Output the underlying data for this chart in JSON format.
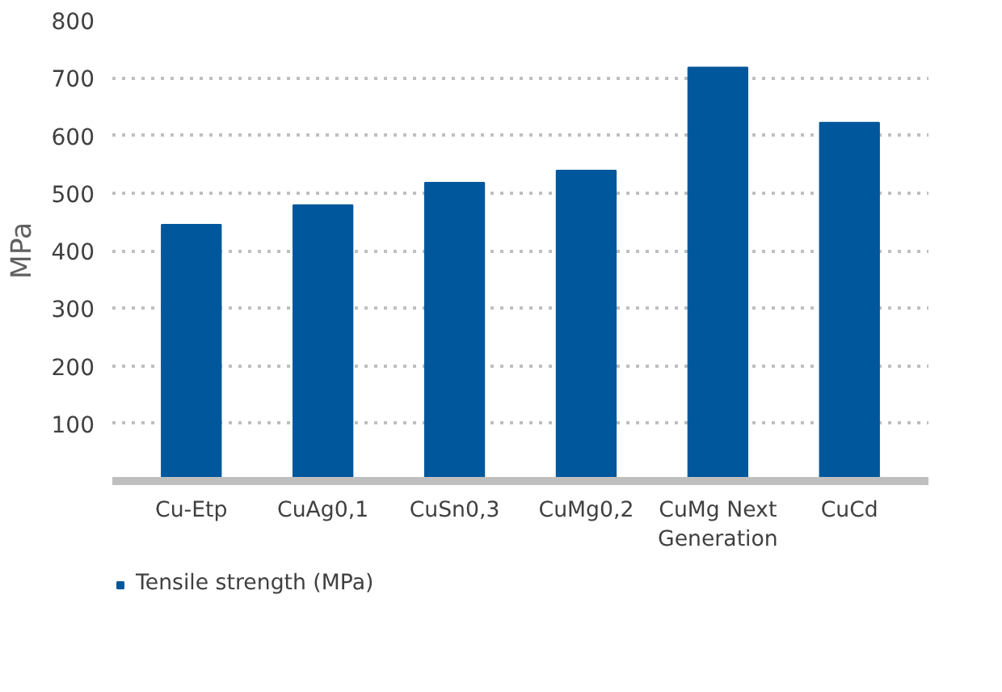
{
  "chart_data": {
    "type": "bar",
    "ylabel": "MPa",
    "categories": [
      "Cu-Etp",
      "CuAg0,1",
      "CuSn0,3",
      "CuMg0,2",
      "CuMg Next Generation",
      "CuCd"
    ],
    "series": [
      {
        "name": "Tensile strength (MPa)",
        "color": "#01579b",
        "values": [
          445,
          479,
          518,
          539,
          718,
          622
        ]
      }
    ],
    "ylim": [
      0,
      800
    ],
    "yticks": [
      100,
      200,
      300,
      400,
      500,
      600,
      700,
      800
    ],
    "grid": "y",
    "legend": "bottom"
  }
}
